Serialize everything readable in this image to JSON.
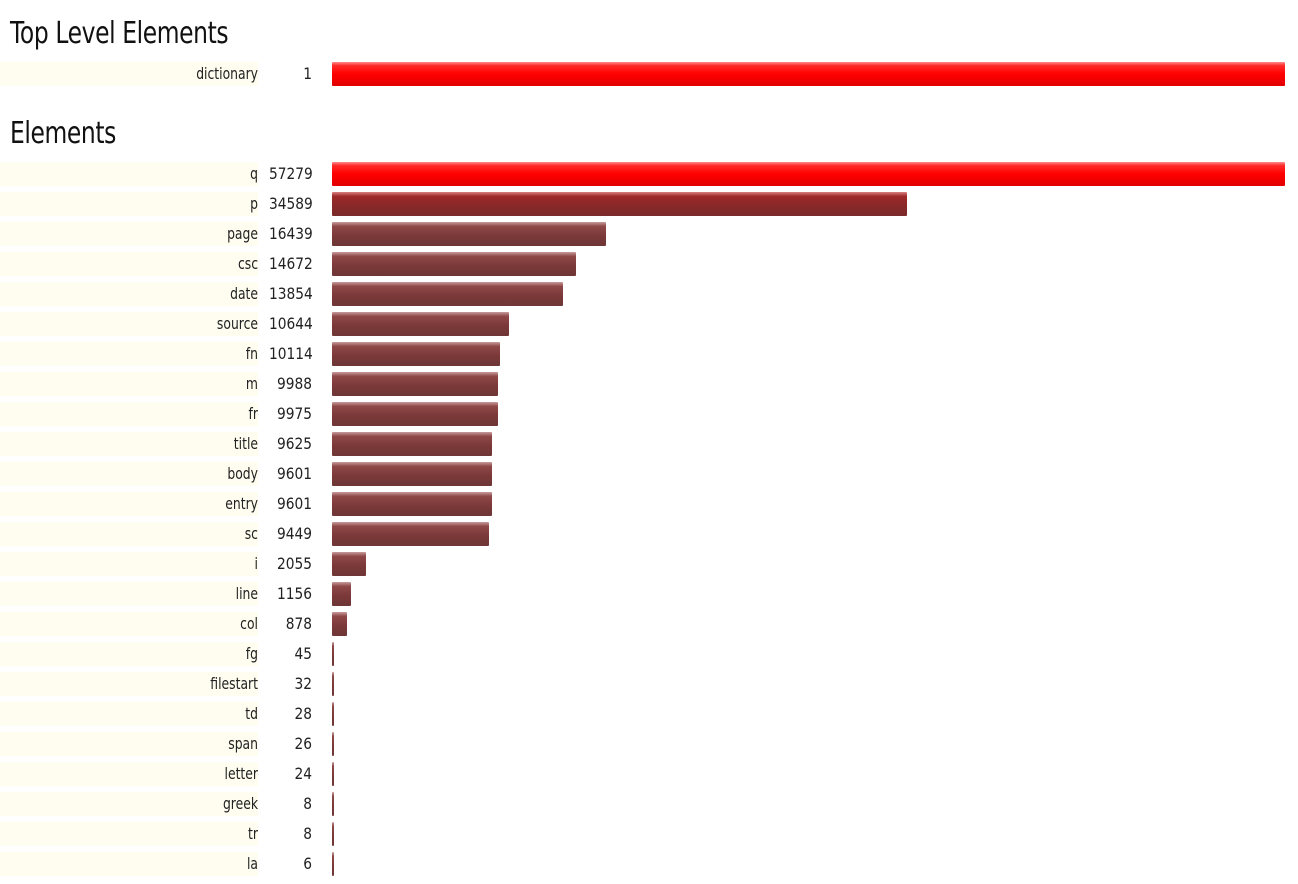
{
  "sections": {
    "top_level": {
      "title": "Top Level Elements"
    },
    "elements": {
      "title": "Elements"
    }
  },
  "colors": {
    "max": "#ff0000",
    "mid": "#9e2a2a",
    "low": "#7a3838",
    "label_bg": "#fffdf0"
  },
  "chart_data": [
    {
      "type": "bar",
      "orientation": "horizontal",
      "title": "Top Level Elements",
      "categories": [
        "dictionary"
      ],
      "values": [
        1
      ],
      "xlim": [
        0,
        1
      ]
    },
    {
      "type": "bar",
      "orientation": "horizontal",
      "title": "Elements",
      "categories": [
        "q",
        "p",
        "page",
        "csc",
        "date",
        "source",
        "fn",
        "m",
        "fr",
        "title",
        "body",
        "entry",
        "sc",
        "i",
        "line",
        "col",
        "fg",
        "filestart",
        "td",
        "span",
        "letter",
        "greek",
        "tr",
        "la"
      ],
      "values": [
        57279,
        34589,
        16439,
        14672,
        13854,
        10644,
        10114,
        9988,
        9975,
        9625,
        9601,
        9601,
        9449,
        2055,
        1156,
        878,
        45,
        32,
        28,
        26,
        24,
        8,
        8,
        6
      ],
      "xlim": [
        0,
        57279
      ]
    }
  ]
}
